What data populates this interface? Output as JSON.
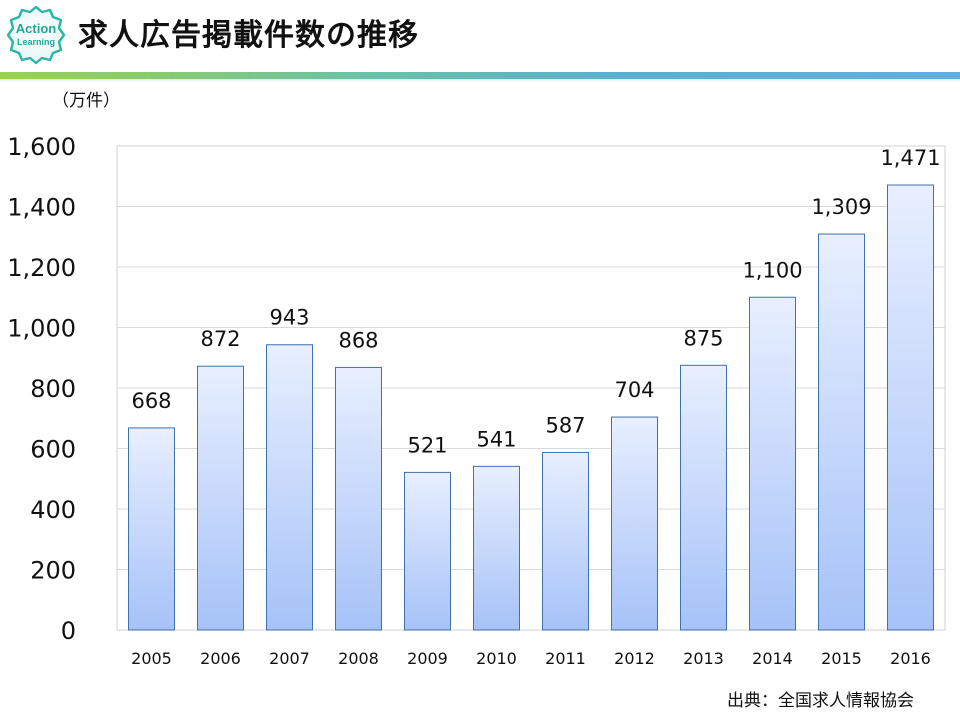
{
  "header": {
    "logo_line1": "Action",
    "logo_line2": "Learning",
    "title": "求人広告掲載件数の推移"
  },
  "source_note": "出典：全国求人情報協会",
  "chart_data": {
    "type": "bar",
    "title": "求人広告掲載件数の推移",
    "ylabel": "（万件）",
    "xlabel": "",
    "categories": [
      "2005",
      "2006",
      "2007",
      "2008",
      "2009",
      "2010",
      "2011",
      "2012",
      "2013",
      "2014",
      "2015",
      "2016"
    ],
    "values": [
      668,
      872,
      943,
      868,
      521,
      541,
      587,
      704,
      875,
      1100,
      1309,
      1471
    ],
    "data_labels": [
      "668",
      "872",
      "943",
      "868",
      "521",
      "541",
      "587",
      "704",
      "875",
      "1,100",
      "1,309",
      "1,471"
    ],
    "ylim": [
      0,
      1600
    ],
    "yticks": [
      0,
      200,
      400,
      600,
      800,
      1000,
      1200,
      1400,
      1600
    ],
    "ytick_labels": [
      "0",
      "200",
      "400",
      "600",
      "800",
      "1,000",
      "1,200",
      "1,400",
      "1,600"
    ],
    "grid": true,
    "legend": "none",
    "colors": {
      "bar_top": "#e8efff",
      "bar_bottom": "#a6c2f8",
      "bar_edge": "#3f72a8",
      "grid": "#d9d9d9"
    }
  }
}
